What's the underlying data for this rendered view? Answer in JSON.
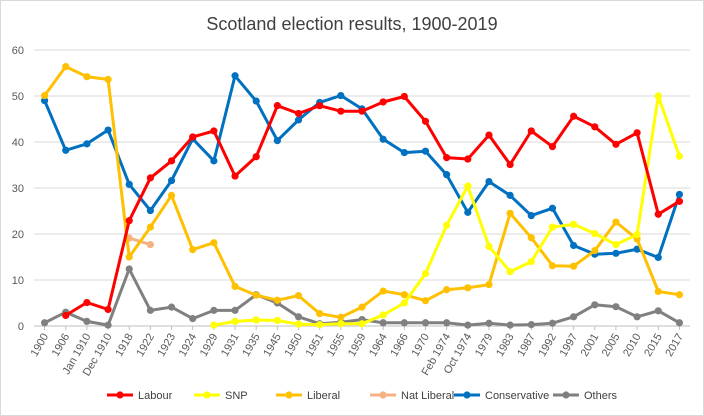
{
  "chart_data": {
    "type": "line",
    "title": "Scotland election  results, 1900-2019",
    "xlabel": "",
    "ylabel": "",
    "ylim": [
      0,
      60
    ],
    "yticks": [
      0,
      10,
      20,
      30,
      40,
      50,
      60
    ],
    "grid": true,
    "legend_position": "bottom",
    "categories": [
      "1900",
      "1906",
      "Jan 1910",
      "Dec 1910",
      "1918",
      "1922",
      "1923",
      "1924",
      "1929",
      "1931",
      "1935",
      "1945",
      "1950",
      "1951",
      "1955",
      "1959",
      "1964",
      "1966",
      "1970",
      "Feb 1974",
      "Oct 1974",
      "1979",
      "1983",
      "1987",
      "1992",
      "1997",
      "2001",
      "2005",
      "2010",
      "2015",
      "2017"
    ],
    "series": [
      {
        "name": "Labour",
        "color": "#ff0000",
        "values": [
          null,
          2.3,
          5.1,
          3.6,
          22.9,
          32.2,
          35.9,
          41.1,
          42.4,
          32.6,
          36.8,
          47.9,
          46.2,
          47.9,
          46.7,
          46.7,
          48.7,
          49.9,
          44.5,
          36.6,
          36.3,
          41.5,
          35.1,
          42.4,
          39.0,
          45.6,
          43.3,
          39.5,
          42.0,
          24.3,
          27.1
        ]
      },
      {
        "name": "SNP",
        "color": "#ffff00",
        "values": [
          null,
          null,
          null,
          null,
          null,
          null,
          null,
          null,
          0.2,
          1.0,
          1.3,
          1.2,
          0.4,
          0.3,
          0.5,
          0.5,
          2.4,
          5.0,
          11.4,
          21.9,
          30.4,
          17.3,
          11.8,
          14.0,
          21.5,
          22.1,
          20.1,
          17.7,
          19.9,
          50.0,
          36.9
        ]
      },
      {
        "name": "Liberal",
        "color": "#ffc000",
        "values": [
          50.1,
          56.4,
          54.2,
          53.6,
          15.0,
          21.5,
          28.4,
          16.6,
          18.1,
          8.6,
          6.7,
          5.6,
          6.6,
          2.7,
          1.9,
          4.1,
          7.6,
          6.8,
          5.5,
          7.9,
          8.3,
          9.0,
          24.5,
          19.2,
          13.1,
          13.0,
          16.4,
          22.6,
          18.9,
          7.5,
          6.8
        ]
      },
      {
        "name": "Nat Liberal",
        "color": "#f4b183",
        "values": [
          null,
          null,
          null,
          null,
          19.1,
          17.7,
          null,
          null,
          null,
          null,
          null,
          null,
          null,
          null,
          null,
          null,
          null,
          null,
          null,
          null,
          null,
          null,
          null,
          null,
          null,
          null,
          null,
          null,
          null,
          null,
          null
        ]
      },
      {
        "name": "Conservative",
        "color": "#0070c0",
        "values": [
          49.0,
          38.2,
          39.6,
          42.6,
          30.8,
          25.1,
          31.6,
          40.7,
          35.9,
          54.4,
          48.9,
          40.3,
          44.8,
          48.6,
          50.1,
          47.2,
          40.6,
          37.7,
          38.0,
          32.9,
          24.7,
          31.4,
          28.4,
          24.0,
          25.6,
          17.5,
          15.6,
          15.8,
          16.7,
          14.9,
          28.6
        ]
      },
      {
        "name": "Others",
        "color": "#808080",
        "values": [
          0.7,
          3.0,
          1.0,
          0.2,
          12.4,
          3.4,
          4.1,
          1.6,
          3.4,
          3.4,
          6.8,
          5.0,
          2.0,
          0.5,
          0.8,
          1.4,
          0.7,
          0.7,
          0.7,
          0.7,
          0.2,
          0.6,
          0.2,
          0.3,
          0.6,
          2.0,
          4.6,
          4.2,
          2.0,
          3.3,
          0.7
        ]
      }
    ]
  }
}
